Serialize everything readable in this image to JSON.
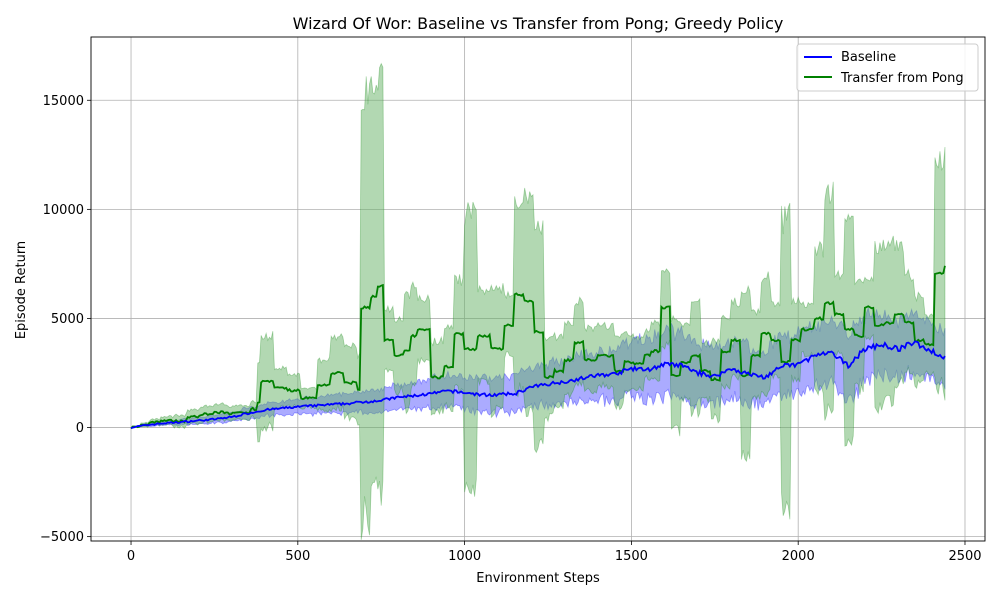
{
  "chart_data": {
    "type": "line",
    "title": "Wizard Of Wor: Baseline vs Transfer from Pong; Greedy Policy",
    "xlabel": "Environment Steps",
    "ylabel": "Episode Return",
    "xlim": [
      -120,
      2560
    ],
    "ylim": [
      -5200,
      17900
    ],
    "xticks": [
      0,
      500,
      1000,
      1500,
      2000,
      2500
    ],
    "yticks": [
      -5000,
      0,
      5000,
      10000,
      15000
    ],
    "xtick_labels": [
      "0",
      "500",
      "1000",
      "1500",
      "2000",
      "2500"
    ],
    "ytick_labels": [
      "−5000",
      "0",
      "5000",
      "10000",
      "15000"
    ],
    "grid": true,
    "legend_position": "top-right",
    "series": [
      {
        "name": "Baseline",
        "color": "#0000ff",
        "band_color": "#6666ff",
        "points": [
          [
            0,
            0
          ],
          [
            50,
            120
          ],
          [
            100,
            200
          ],
          [
            150,
            250
          ],
          [
            200,
            320
          ],
          [
            250,
            380
          ],
          [
            300,
            480
          ],
          [
            350,
            650
          ],
          [
            400,
            800
          ],
          [
            450,
            880
          ],
          [
            500,
            950
          ],
          [
            550,
            1000
          ],
          [
            600,
            1050
          ],
          [
            650,
            1100
          ],
          [
            700,
            1180
          ],
          [
            750,
            1250
          ],
          [
            800,
            1380
          ],
          [
            850,
            1460
          ],
          [
            900,
            1550
          ],
          [
            950,
            1680
          ],
          [
            1000,
            1600
          ],
          [
            1050,
            1500
          ],
          [
            1100,
            1500
          ],
          [
            1150,
            1550
          ],
          [
            1200,
            1850
          ],
          [
            1250,
            2000
          ],
          [
            1300,
            2100
          ],
          [
            1350,
            2250
          ],
          [
            1400,
            2400
          ],
          [
            1450,
            2450
          ],
          [
            1500,
            2700
          ],
          [
            1550,
            2650
          ],
          [
            1600,
            2900
          ],
          [
            1650,
            2850
          ],
          [
            1700,
            2500
          ],
          [
            1750,
            2350
          ],
          [
            1800,
            2700
          ],
          [
            1850,
            2450
          ],
          [
            1900,
            2300
          ],
          [
            1950,
            2800
          ],
          [
            2000,
            2900
          ],
          [
            2050,
            3300
          ],
          [
            2100,
            3400
          ],
          [
            2150,
            2850
          ],
          [
            2200,
            3600
          ],
          [
            2250,
            3800
          ],
          [
            2300,
            3600
          ],
          [
            2350,
            3900
          ],
          [
            2400,
            3500
          ],
          [
            2440,
            3200
          ]
        ],
        "band_width": [
          0,
          60,
          90,
          110,
          140,
          170,
          200,
          230,
          260,
          290,
          320,
          350,
          380,
          400,
          450,
          500,
          550,
          600,
          650,
          680,
          700,
          720,
          760,
          800,
          850,
          900,
          950,
          1000,
          1050,
          1100,
          1200,
          1300,
          1400,
          1500,
          1300,
          1200,
          1200,
          1250,
          1200,
          1300,
          1300,
          1300,
          1400,
          1500,
          1400,
          1300,
          1200,
          1300,
          1200,
          1200
        ]
      },
      {
        "name": "Transfer from Pong",
        "color": "#008000",
        "band_color": "#66b266",
        "points": [
          [
            0,
            0
          ],
          [
            30,
            150
          ],
          [
            60,
            250
          ],
          [
            90,
            300
          ],
          [
            130,
            300
          ],
          [
            170,
            500
          ],
          [
            210,
            600
          ],
          [
            250,
            700
          ],
          [
            290,
            650
          ],
          [
            320,
            650
          ],
          [
            360,
            850
          ],
          [
            380,
            1200
          ],
          [
            390,
            2100
          ],
          [
            430,
            1800
          ],
          [
            470,
            1700
          ],
          [
            510,
            1350
          ],
          [
            560,
            1950
          ],
          [
            600,
            2500
          ],
          [
            640,
            2050
          ],
          [
            680,
            1700
          ],
          [
            690,
            5500
          ],
          [
            720,
            6000
          ],
          [
            740,
            6500
          ],
          [
            760,
            4000
          ],
          [
            790,
            3300
          ],
          [
            820,
            3500
          ],
          [
            840,
            4200
          ],
          [
            860,
            4500
          ],
          [
            900,
            2300
          ],
          [
            940,
            2800
          ],
          [
            970,
            4300
          ],
          [
            1000,
            3600
          ],
          [
            1040,
            4200
          ],
          [
            1080,
            3600
          ],
          [
            1120,
            4700
          ],
          [
            1150,
            6100
          ],
          [
            1180,
            5800
          ],
          [
            1210,
            4400
          ],
          [
            1240,
            2300
          ],
          [
            1270,
            2600
          ],
          [
            1300,
            3100
          ],
          [
            1330,
            3900
          ],
          [
            1360,
            3100
          ],
          [
            1400,
            3300
          ],
          [
            1450,
            2600
          ],
          [
            1480,
            3000
          ],
          [
            1510,
            2900
          ],
          [
            1540,
            3300
          ],
          [
            1560,
            3500
          ],
          [
            1590,
            5500
          ],
          [
            1620,
            2400
          ],
          [
            1650,
            3000
          ],
          [
            1680,
            3300
          ],
          [
            1710,
            2600
          ],
          [
            1740,
            2200
          ],
          [
            1770,
            3500
          ],
          [
            1800,
            4000
          ],
          [
            1830,
            2400
          ],
          [
            1860,
            3300
          ],
          [
            1890,
            4300
          ],
          [
            1920,
            4000
          ],
          [
            1950,
            3000
          ],
          [
            1980,
            4000
          ],
          [
            2010,
            4500
          ],
          [
            2050,
            5000
          ],
          [
            2080,
            5700
          ],
          [
            2110,
            5200
          ],
          [
            2140,
            4500
          ],
          [
            2170,
            4200
          ],
          [
            2200,
            5500
          ],
          [
            2230,
            4700
          ],
          [
            2260,
            4800
          ],
          [
            2290,
            5200
          ],
          [
            2320,
            4800
          ],
          [
            2350,
            4000
          ],
          [
            2380,
            3800
          ],
          [
            2410,
            7100
          ],
          [
            2440,
            7400
          ]
        ],
        "band_half_width": [
          0,
          100,
          150,
          200,
          300,
          350,
          400,
          400,
          350,
          350,
          400,
          2000,
          2300,
          1000,
          800,
          500,
          1300,
          1800,
          1800,
          1700,
          10800,
          10300,
          10300,
          1600,
          1800,
          2900,
          2700,
          1600,
          1800,
          2100,
          2800,
          6800,
          2300,
          3200,
          1500,
          4900,
          5400,
          5600,
          2000,
          1800,
          1800,
          2100,
          1600,
          1500,
          1800,
          1400,
          1300,
          1200,
          1400,
          1900,
          2800,
          1900,
          2800,
          1400,
          2000,
          1800,
          1900,
          4100,
          2200,
          2900,
          1800,
          7300,
          2000,
          1300,
          3500,
          5700,
          2000,
          5700,
          2700,
          1500,
          4000,
          4000,
          3600,
          2400,
          2300,
          1400,
          5600,
          6700
        ]
      }
    ]
  }
}
